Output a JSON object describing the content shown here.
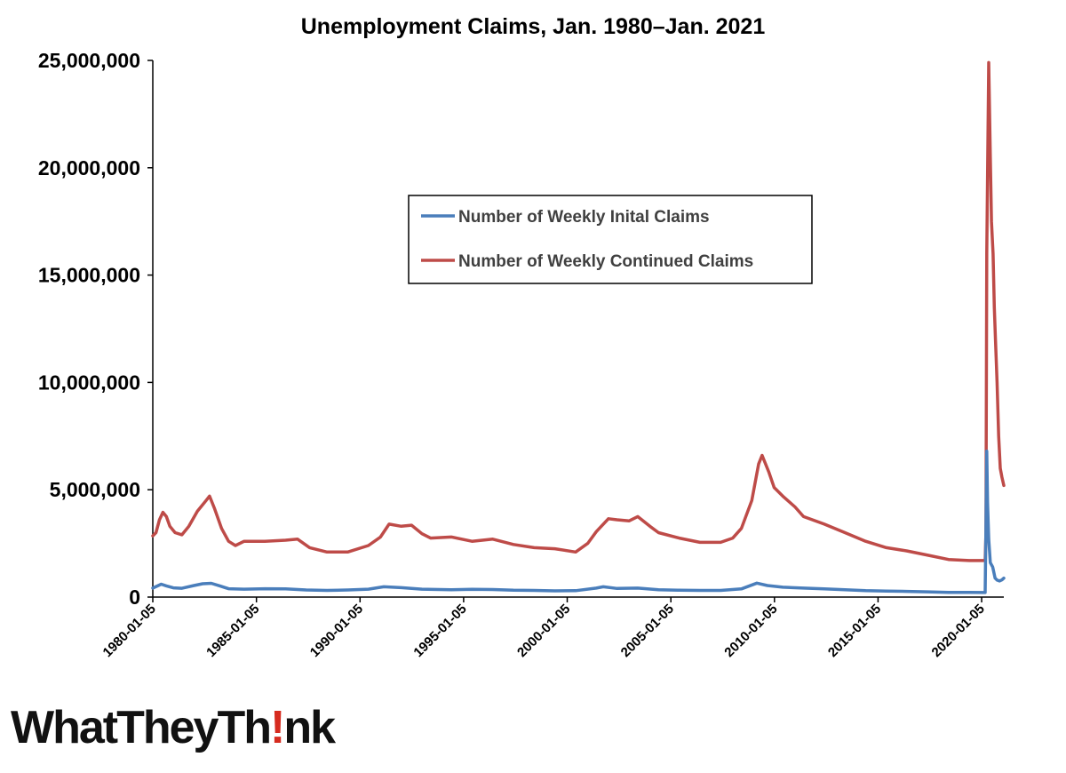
{
  "chart_data": {
    "type": "line",
    "title": "Unemployment Claims, Jan. 1980–Jan. 2021",
    "xlabel": "",
    "ylabel": "",
    "ylim": [
      0,
      25000000
    ],
    "yticks": [
      0,
      5000000,
      10000000,
      15000000,
      20000000,
      25000000
    ],
    "ytick_labels": [
      "0",
      "5,000,000",
      "10,000,000",
      "15,000,000",
      "20,000,000",
      "25,000,000"
    ],
    "xlim": [
      "1980-01-05",
      "2021-01-30"
    ],
    "xticks": [
      "1980-01-05",
      "1985-01-05",
      "1990-01-05",
      "1995-01-05",
      "2000-01-05",
      "2005-01-05",
      "2010-01-05",
      "2015-01-05",
      "2020-01-05"
    ],
    "grid": false,
    "legend": "upper-center",
    "series": [
      {
        "name": "Number of Weekly Inital Claims",
        "color": "#4a7ebb",
        "points": [
          [
            "1980-01-05",
            420000
          ],
          [
            "1980-06-01",
            600000
          ],
          [
            "1980-09-01",
            520000
          ],
          [
            "1981-01-01",
            430000
          ],
          [
            "1981-06-01",
            410000
          ],
          [
            "1982-01-01",
            540000
          ],
          [
            "1982-06-01",
            620000
          ],
          [
            "1982-11-01",
            640000
          ],
          [
            "1983-04-01",
            520000
          ],
          [
            "1983-09-01",
            390000
          ],
          [
            "1984-06-01",
            370000
          ],
          [
            "1985-06-01",
            390000
          ],
          [
            "1986-06-01",
            380000
          ],
          [
            "1987-06-01",
            330000
          ],
          [
            "1988-06-01",
            310000
          ],
          [
            "1989-06-01",
            330000
          ],
          [
            "1990-06-01",
            370000
          ],
          [
            "1991-03-01",
            480000
          ],
          [
            "1992-01-01",
            440000
          ],
          [
            "1993-01-01",
            370000
          ],
          [
            "1994-06-01",
            340000
          ],
          [
            "1995-06-01",
            360000
          ],
          [
            "1996-06-01",
            350000
          ],
          [
            "1997-06-01",
            320000
          ],
          [
            "1998-06-01",
            310000
          ],
          [
            "1999-06-01",
            290000
          ],
          [
            "2000-06-01",
            300000
          ],
          [
            "2001-06-01",
            420000
          ],
          [
            "2001-10-01",
            480000
          ],
          [
            "2002-06-01",
            400000
          ],
          [
            "2003-06-01",
            420000
          ],
          [
            "2004-06-01",
            340000
          ],
          [
            "2005-06-01",
            320000
          ],
          [
            "2006-06-01",
            310000
          ],
          [
            "2007-06-01",
            310000
          ],
          [
            "2008-06-01",
            380000
          ],
          [
            "2009-03-01",
            650000
          ],
          [
            "2009-09-01",
            540000
          ],
          [
            "2010-06-01",
            460000
          ],
          [
            "2011-06-01",
            420000
          ],
          [
            "2012-06-01",
            380000
          ],
          [
            "2013-06-01",
            340000
          ],
          [
            "2014-06-01",
            300000
          ],
          [
            "2015-06-01",
            280000
          ],
          [
            "2016-06-01",
            265000
          ],
          [
            "2017-06-01",
            245000
          ],
          [
            "2018-06-01",
            220000
          ],
          [
            "2019-06-01",
            215000
          ],
          [
            "2020-03-07",
            211000
          ],
          [
            "2020-03-21",
            3300000
          ],
          [
            "2020-04-04",
            6800000
          ],
          [
            "2020-04-18",
            4400000
          ],
          [
            "2020-05-09",
            2700000
          ],
          [
            "2020-06-06",
            1600000
          ],
          [
            "2020-07-18",
            1400000
          ],
          [
            "2020-08-29",
            880000
          ],
          [
            "2020-10-03",
            790000
          ],
          [
            "2020-11-14",
            750000
          ],
          [
            "2020-12-26",
            800000
          ],
          [
            "2021-01-30",
            880000
          ]
        ]
      },
      {
        "name": "Number of Weekly Continued Claims",
        "color": "#be4b48",
        "points": [
          [
            "1980-01-05",
            2850000
          ],
          [
            "1980-03-01",
            3000000
          ],
          [
            "1980-05-01",
            3600000
          ],
          [
            "1980-07-01",
            3950000
          ],
          [
            "1980-09-01",
            3750000
          ],
          [
            "1980-11-01",
            3300000
          ],
          [
            "1981-02-01",
            3000000
          ],
          [
            "1981-06-01",
            2900000
          ],
          [
            "1981-10-01",
            3300000
          ],
          [
            "1982-03-01",
            4000000
          ],
          [
            "1982-08-01",
            4500000
          ],
          [
            "1982-10-01",
            4700000
          ],
          [
            "1983-01-01",
            4100000
          ],
          [
            "1983-05-01",
            3200000
          ],
          [
            "1983-09-01",
            2600000
          ],
          [
            "1984-01-01",
            2400000
          ],
          [
            "1984-06-01",
            2600000
          ],
          [
            "1985-06-01",
            2600000
          ],
          [
            "1986-06-01",
            2650000
          ],
          [
            "1987-01-01",
            2700000
          ],
          [
            "1987-08-01",
            2300000
          ],
          [
            "1988-06-01",
            2100000
          ],
          [
            "1989-06-01",
            2100000
          ],
          [
            "1990-06-01",
            2400000
          ],
          [
            "1991-01-01",
            2800000
          ],
          [
            "1991-06-01",
            3400000
          ],
          [
            "1992-01-01",
            3300000
          ],
          [
            "1992-07-01",
            3350000
          ],
          [
            "1993-01-01",
            2950000
          ],
          [
            "1993-06-01",
            2750000
          ],
          [
            "1994-06-01",
            2800000
          ],
          [
            "1995-06-01",
            2600000
          ],
          [
            "1996-06-01",
            2700000
          ],
          [
            "1997-06-01",
            2450000
          ],
          [
            "1998-06-01",
            2300000
          ],
          [
            "1999-06-01",
            2250000
          ],
          [
            "2000-06-01",
            2100000
          ],
          [
            "2001-01-01",
            2500000
          ],
          [
            "2001-06-01",
            3050000
          ],
          [
            "2002-01-01",
            3650000
          ],
          [
            "2002-06-01",
            3600000
          ],
          [
            "2003-01-01",
            3550000
          ],
          [
            "2003-06-01",
            3750000
          ],
          [
            "2004-01-01",
            3300000
          ],
          [
            "2004-06-01",
            3000000
          ],
          [
            "2005-06-01",
            2750000
          ],
          [
            "2006-06-01",
            2550000
          ],
          [
            "2007-06-01",
            2550000
          ],
          [
            "2008-01-01",
            2750000
          ],
          [
            "2008-06-01",
            3200000
          ],
          [
            "2008-12-01",
            4500000
          ],
          [
            "2009-04-01",
            6200000
          ],
          [
            "2009-06-01",
            6600000
          ],
          [
            "2009-10-01",
            5800000
          ],
          [
            "2010-01-01",
            5100000
          ],
          [
            "2010-06-01",
            4700000
          ],
          [
            "2011-01-01",
            4200000
          ],
          [
            "2011-06-01",
            3750000
          ],
          [
            "2012-06-01",
            3400000
          ],
          [
            "2013-06-01",
            3000000
          ],
          [
            "2014-06-01",
            2600000
          ],
          [
            "2015-06-01",
            2300000
          ],
          [
            "2016-06-01",
            2150000
          ],
          [
            "2017-06-01",
            1950000
          ],
          [
            "2018-06-01",
            1750000
          ],
          [
            "2019-06-01",
            1700000
          ],
          [
            "2020-03-07",
            1700000
          ],
          [
            "2020-03-21",
            3000000
          ],
          [
            "2020-04-04",
            16000000
          ],
          [
            "2020-05-09",
            24900000
          ],
          [
            "2020-06-06",
            20500000
          ],
          [
            "2020-06-27",
            17500000
          ],
          [
            "2020-07-25",
            16000000
          ],
          [
            "2020-08-15",
            13500000
          ],
          [
            "2020-09-05",
            12000000
          ],
          [
            "2020-10-03",
            10000000
          ],
          [
            "2020-10-31",
            7500000
          ],
          [
            "2020-11-28",
            6000000
          ],
          [
            "2020-12-26",
            5600000
          ],
          [
            "2021-01-30",
            5200000
          ]
        ]
      }
    ]
  },
  "logo": {
    "text_before": "WhatTheyTh",
    "text_mark": "!",
    "text_after": "nk"
  }
}
